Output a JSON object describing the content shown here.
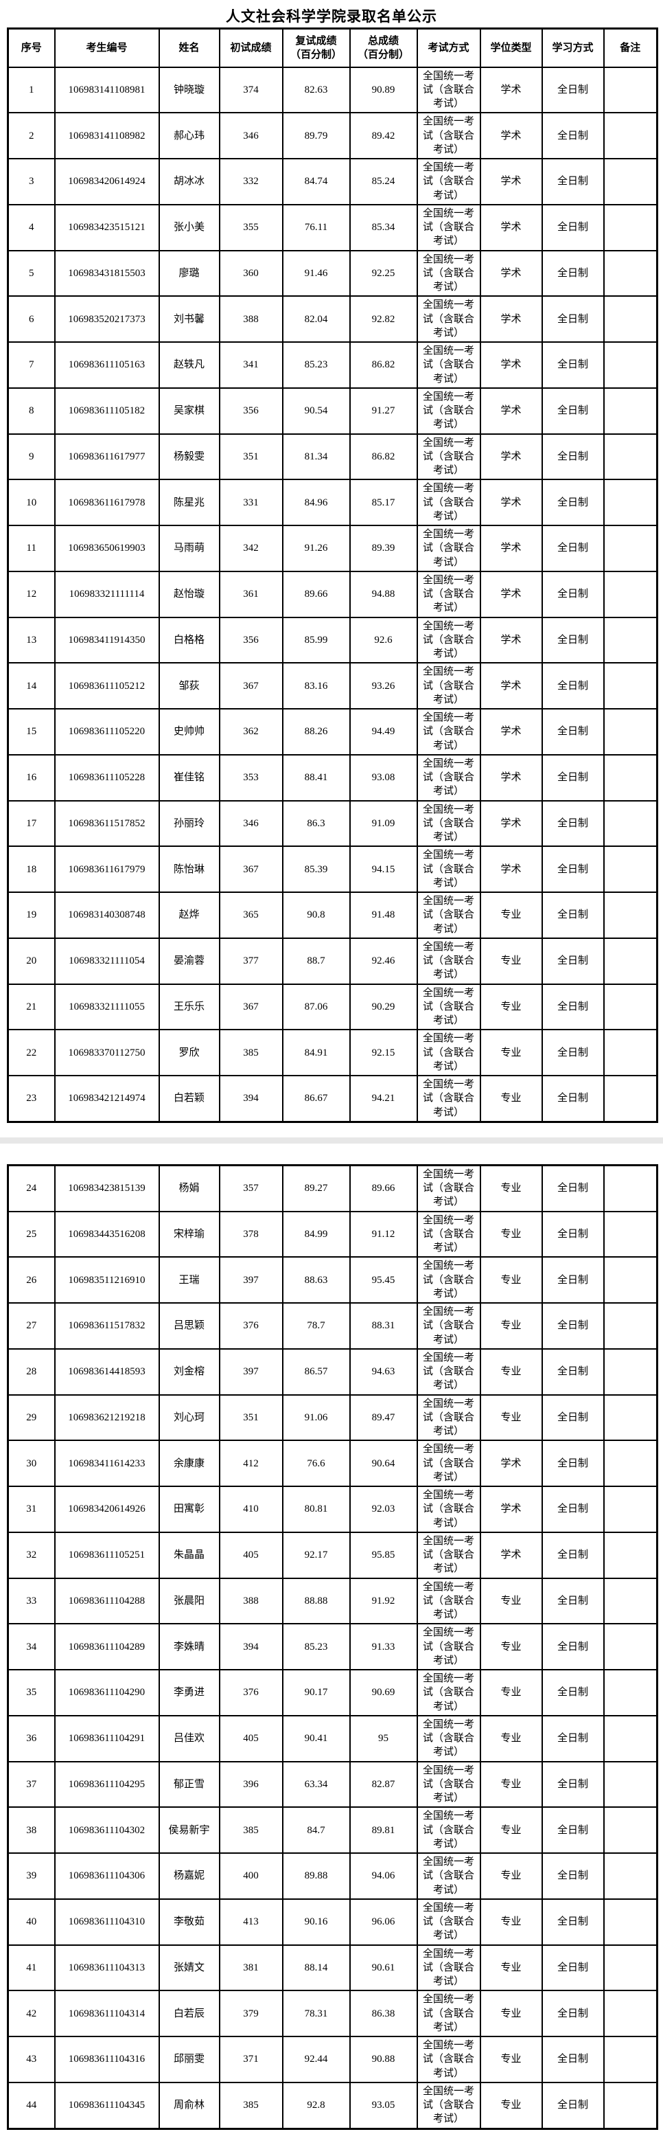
{
  "title": "人文社会科学学院录取名单公示",
  "colors": {
    "background": "#ffffff",
    "text": "#000000",
    "table_border": "#000000",
    "page_break_band": "#e7e7e7"
  },
  "table": {
    "headers": {
      "no": "序号",
      "candidate_id": "考生编号",
      "name": "姓名",
      "initial_score": "初试成绩",
      "retest_score": "复试成绩\n（百分制）",
      "total_score": "总成绩\n（百分制）",
      "exam_method": "考试方式",
      "degree_type": "学位类型",
      "study_mode": "学习方式",
      "remark": "备注"
    },
    "exam_method_common": "全国统一考试（含联合考试）",
    "study_mode_common": "全日制",
    "pages": [
      {
        "rows": [
          [
            "1",
            "106983141108981",
            "钟晓璇",
            "374",
            "82.63",
            "90.89",
            "学术",
            ""
          ],
          [
            "2",
            "106983141108982",
            "郝心玮",
            "346",
            "89.79",
            "89.42",
            "学术",
            ""
          ],
          [
            "3",
            "106983420614924",
            "胡冰冰",
            "332",
            "84.74",
            "85.24",
            "学术",
            ""
          ],
          [
            "4",
            "106983423515121",
            "张小美",
            "355",
            "76.11",
            "85.34",
            "学术",
            ""
          ],
          [
            "5",
            "106983431815503",
            "廖璐",
            "360",
            "91.46",
            "92.25",
            "学术",
            ""
          ],
          [
            "6",
            "106983520217373",
            "刘书馨",
            "388",
            "82.04",
            "92.82",
            "学术",
            ""
          ],
          [
            "7",
            "106983611105163",
            "赵轶凡",
            "341",
            "85.23",
            "86.82",
            "学术",
            ""
          ],
          [
            "8",
            "106983611105182",
            "吴家棋",
            "356",
            "90.54",
            "91.27",
            "学术",
            ""
          ],
          [
            "9",
            "106983611617977",
            "杨毅雯",
            "351",
            "81.34",
            "86.82",
            "学术",
            ""
          ],
          [
            "10",
            "106983611617978",
            "陈星兆",
            "331",
            "84.96",
            "85.17",
            "学术",
            ""
          ],
          [
            "11",
            "106983650619903",
            "马雨萌",
            "342",
            "91.26",
            "89.39",
            "学术",
            ""
          ],
          [
            "12",
            "106983321111114",
            "赵怡璇",
            "361",
            "89.66",
            "94.88",
            "学术",
            ""
          ],
          [
            "13",
            "106983411914350",
            "白格格",
            "356",
            "85.99",
            "92.6",
            "学术",
            ""
          ],
          [
            "14",
            "106983611105212",
            "邹荻",
            "367",
            "83.16",
            "93.26",
            "学术",
            ""
          ],
          [
            "15",
            "106983611105220",
            "史帅帅",
            "362",
            "88.26",
            "94.49",
            "学术",
            ""
          ],
          [
            "16",
            "106983611105228",
            "崔佳铭",
            "353",
            "88.41",
            "93.08",
            "学术",
            ""
          ],
          [
            "17",
            "106983611517852",
            "孙丽玲",
            "346",
            "86.3",
            "91.09",
            "学术",
            ""
          ],
          [
            "18",
            "106983611617979",
            "陈怡琳",
            "367",
            "85.39",
            "94.15",
            "学术",
            ""
          ],
          [
            "19",
            "106983140308748",
            "赵烨",
            "365",
            "90.8",
            "91.48",
            "专业",
            ""
          ],
          [
            "20",
            "106983321111054",
            "晏渝蓉",
            "377",
            "88.7",
            "92.46",
            "专业",
            ""
          ],
          [
            "21",
            "106983321111055",
            "王乐乐",
            "367",
            "87.06",
            "90.29",
            "专业",
            ""
          ],
          [
            "22",
            "106983370112750",
            "罗欣",
            "385",
            "84.91",
            "92.15",
            "专业",
            ""
          ],
          [
            "23",
            "106983421214974",
            "白若颖",
            "394",
            "86.67",
            "94.21",
            "专业",
            ""
          ]
        ]
      },
      {
        "rows": [
          [
            "24",
            "106983423815139",
            "杨娟",
            "357",
            "89.27",
            "89.66",
            "专业",
            ""
          ],
          [
            "25",
            "106983443516208",
            "宋梓瑜",
            "378",
            "84.99",
            "91.12",
            "专业",
            ""
          ],
          [
            "26",
            "106983511216910",
            "王瑞",
            "397",
            "88.63",
            "95.45",
            "专业",
            ""
          ],
          [
            "27",
            "106983611517832",
            "吕思颖",
            "376",
            "78.7",
            "88.31",
            "专业",
            ""
          ],
          [
            "28",
            "106983614418593",
            "刘金榕",
            "397",
            "86.57",
            "94.63",
            "专业",
            ""
          ],
          [
            "29",
            "106983621219218",
            "刘心珂",
            "351",
            "91.06",
            "89.47",
            "专业",
            ""
          ],
          [
            "30",
            "106983411614233",
            "余康康",
            "412",
            "76.6",
            "90.64",
            "学术",
            ""
          ],
          [
            "31",
            "106983420614926",
            "田寓彰",
            "410",
            "80.81",
            "92.03",
            "学术",
            ""
          ],
          [
            "32",
            "106983611105251",
            "朱晶晶",
            "405",
            "92.17",
            "95.85",
            "学术",
            ""
          ],
          [
            "33",
            "106983611104288",
            "张晨阳",
            "388",
            "88.88",
            "91.92",
            "专业",
            ""
          ],
          [
            "34",
            "106983611104289",
            "李姝晴",
            "394",
            "85.23",
            "91.33",
            "专业",
            ""
          ],
          [
            "35",
            "106983611104290",
            "李勇进",
            "376",
            "90.17",
            "90.69",
            "专业",
            ""
          ],
          [
            "36",
            "106983611104291",
            "吕佳欢",
            "405",
            "90.41",
            "95",
            "专业",
            ""
          ],
          [
            "37",
            "106983611104295",
            "郁正雪",
            "396",
            "63.34",
            "82.87",
            "专业",
            ""
          ],
          [
            "38",
            "106983611104302",
            "侯易新宇",
            "385",
            "84.7",
            "89.81",
            "专业",
            ""
          ],
          [
            "39",
            "106983611104306",
            "杨嘉妮",
            "400",
            "89.88",
            "94.06",
            "专业",
            ""
          ],
          [
            "40",
            "106983611104310",
            "李敬茹",
            "413",
            "90.16",
            "96.06",
            "专业",
            ""
          ],
          [
            "41",
            "106983611104313",
            "张婧文",
            "381",
            "88.14",
            "90.61",
            "专业",
            ""
          ],
          [
            "42",
            "106983611104314",
            "白若辰",
            "379",
            "78.31",
            "86.38",
            "专业",
            ""
          ],
          [
            "43",
            "106983611104316",
            "邱丽雯",
            "371",
            "92.44",
            "90.88",
            "专业",
            ""
          ],
          [
            "44",
            "106983611104345",
            "周俞林",
            "385",
            "92.8",
            "93.05",
            "专业",
            ""
          ]
        ]
      }
    ]
  }
}
